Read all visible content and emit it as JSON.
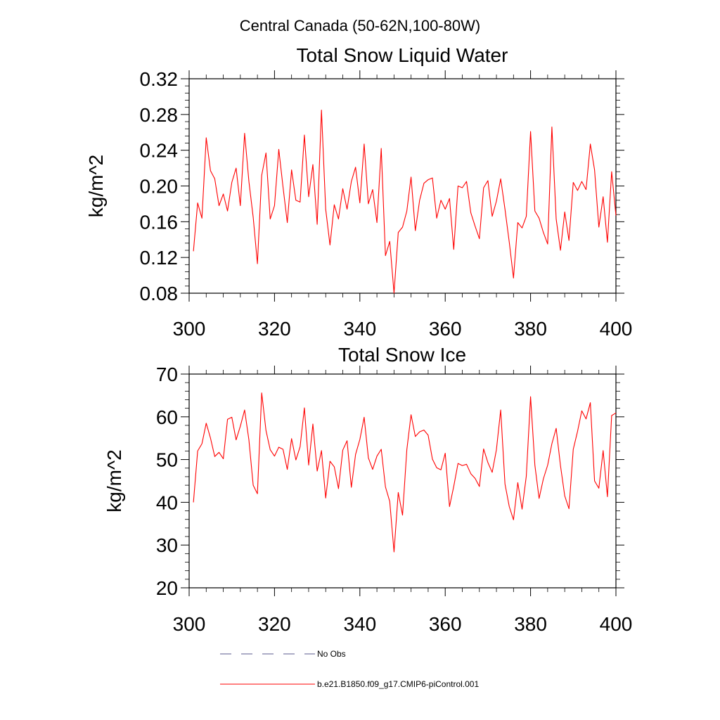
{
  "suptitle": "Central Canada (50-62N,100-80W)",
  "colors": {
    "series": "#ff0000",
    "obs": "#5a5a8c",
    "axis": "#000000"
  },
  "legend": {
    "obs_label": "No Obs",
    "model_label": "b.e21.B1850.f09_g17.CMIP6-piControl.001"
  },
  "chart_data": [
    {
      "type": "line",
      "title": "Total Snow Liquid Water",
      "xlabel": "",
      "ylabel": "kg/m^2",
      "xlim": [
        300,
        400
      ],
      "ylim": [
        0.08,
        0.32
      ],
      "xticks": [
        300,
        320,
        340,
        360,
        380,
        400
      ],
      "xtick_labels": [
        "300",
        "320",
        "340",
        "360",
        "380",
        "400"
      ],
      "yticks": [
        0.08,
        0.12,
        0.16,
        0.2,
        0.24,
        0.28,
        0.32
      ],
      "ytick_labels": [
        "0.08",
        "0.12",
        "0.16",
        "0.20",
        "0.24",
        "0.28",
        "0.32"
      ],
      "legend": "bottom",
      "grid": false,
      "series": [
        {
          "name": "b.e21.B1850.f09_g17.CMIP6-piControl.001",
          "color": "#ff0000",
          "x": [
            301,
            302,
            303,
            304,
            305,
            306,
            307,
            308,
            309,
            310,
            311,
            312,
            313,
            314,
            315,
            316,
            317,
            318,
            319,
            320,
            321,
            322,
            323,
            324,
            325,
            326,
            327,
            328,
            329,
            330,
            331,
            332,
            333,
            334,
            335,
            336,
            337,
            338,
            339,
            340,
            341,
            342,
            343,
            344,
            345,
            346,
            347,
            348,
            349,
            350,
            351,
            352,
            353,
            354,
            355,
            356,
            357,
            358,
            359,
            360,
            361,
            362,
            363,
            364,
            365,
            366,
            367,
            368,
            369,
            370,
            371,
            372,
            373,
            374,
            375,
            376,
            377,
            378,
            379,
            380,
            381,
            382,
            383,
            384,
            385,
            386,
            387,
            388,
            389,
            390,
            391,
            392,
            393,
            394,
            395,
            396,
            397,
            398,
            399,
            400
          ],
          "values": [
            0.127,
            0.181,
            0.164,
            0.254,
            0.217,
            0.208,
            0.178,
            0.191,
            0.172,
            0.204,
            0.22,
            0.178,
            0.259,
            0.205,
            0.165,
            0.113,
            0.212,
            0.237,
            0.163,
            0.178,
            0.241,
            0.199,
            0.159,
            0.218,
            0.184,
            0.182,
            0.257,
            0.188,
            0.224,
            0.157,
            0.285,
            0.174,
            0.134,
            0.179,
            0.163,
            0.197,
            0.174,
            0.205,
            0.221,
            0.181,
            0.247,
            0.18,
            0.196,
            0.159,
            0.242,
            0.122,
            0.138,
            0.08,
            0.148,
            0.154,
            0.172,
            0.21,
            0.15,
            0.184,
            0.203,
            0.207,
            0.209,
            0.164,
            0.184,
            0.174,
            0.186,
            0.129,
            0.2,
            0.198,
            0.205,
            0.17,
            0.155,
            0.141,
            0.198,
            0.206,
            0.166,
            0.183,
            0.208,
            0.174,
            0.137,
            0.097,
            0.159,
            0.153,
            0.166,
            0.261,
            0.172,
            0.164,
            0.148,
            0.135,
            0.266,
            0.163,
            0.128,
            0.171,
            0.139,
            0.204,
            0.195,
            0.205,
            0.196,
            0.247,
            0.218,
            0.154,
            0.188,
            0.137,
            0.216,
            0.167
          ]
        }
      ]
    },
    {
      "type": "line",
      "title": "Total Snow Ice",
      "xlabel": "",
      "ylabel": "kg/m^2",
      "xlim": [
        300,
        400
      ],
      "ylim": [
        20,
        70
      ],
      "xticks": [
        300,
        320,
        340,
        360,
        380,
        400
      ],
      "xtick_labels": [
        "300",
        "320",
        "340",
        "360",
        "380",
        "400"
      ],
      "yticks": [
        20,
        30,
        40,
        50,
        60,
        70
      ],
      "ytick_labels": [
        "20",
        "30",
        "40",
        "50",
        "60",
        "70"
      ],
      "legend": "bottom",
      "grid": false,
      "series": [
        {
          "name": "b.e21.B1850.f09_g17.CMIP6-piControl.001",
          "color": "#ff0000",
          "x": [
            301,
            302,
            303,
            304,
            305,
            306,
            307,
            308,
            309,
            310,
            311,
            312,
            313,
            314,
            315,
            316,
            317,
            318,
            319,
            320,
            321,
            322,
            323,
            324,
            325,
            326,
            327,
            328,
            329,
            330,
            331,
            332,
            333,
            334,
            335,
            336,
            337,
            338,
            339,
            340,
            341,
            342,
            343,
            344,
            345,
            346,
            347,
            348,
            349,
            350,
            351,
            352,
            353,
            354,
            355,
            356,
            357,
            358,
            359,
            360,
            361,
            362,
            363,
            364,
            365,
            366,
            367,
            368,
            369,
            370,
            371,
            372,
            373,
            374,
            375,
            376,
            377,
            378,
            379,
            380,
            381,
            382,
            383,
            384,
            385,
            386,
            387,
            388,
            389,
            390,
            391,
            392,
            393,
            394,
            395,
            396,
            397,
            398,
            399,
            400
          ],
          "values": [
            40.0,
            52.0,
            53.7,
            58.5,
            55.0,
            50.7,
            51.7,
            50.2,
            59.4,
            59.9,
            54.6,
            57.8,
            61.6,
            54.6,
            44.0,
            42.0,
            65.6,
            56.8,
            52.3,
            50.8,
            52.9,
            52.4,
            47.7,
            54.9,
            49.9,
            53.0,
            62.1,
            48.7,
            58.3,
            47.3,
            52.1,
            41.0,
            49.6,
            48.3,
            43.2,
            52.2,
            54.4,
            43.5,
            51.2,
            54.7,
            59.9,
            50.4,
            47.7,
            50.8,
            52.4,
            43.6,
            40.2,
            28.4,
            42.3,
            37.0,
            52.3,
            60.5,
            55.4,
            56.5,
            56.9,
            55.7,
            50.1,
            48.1,
            47.6,
            51.5,
            39.0,
            43.7,
            49.1,
            48.6,
            48.9,
            46.7,
            45.6,
            43.7,
            52.5,
            49.3,
            47.0,
            52.3,
            61.6,
            44.3,
            39.0,
            35.9,
            44.6,
            38.4,
            46.1,
            64.7,
            48.7,
            40.9,
            45.5,
            48.7,
            53.7,
            57.3,
            48.6,
            41.5,
            38.5,
            52.4,
            56.6,
            61.4,
            59.5,
            63.3,
            45.0,
            43.3,
            52.1,
            41.3,
            60.3,
            60.9
          ]
        }
      ]
    }
  ]
}
